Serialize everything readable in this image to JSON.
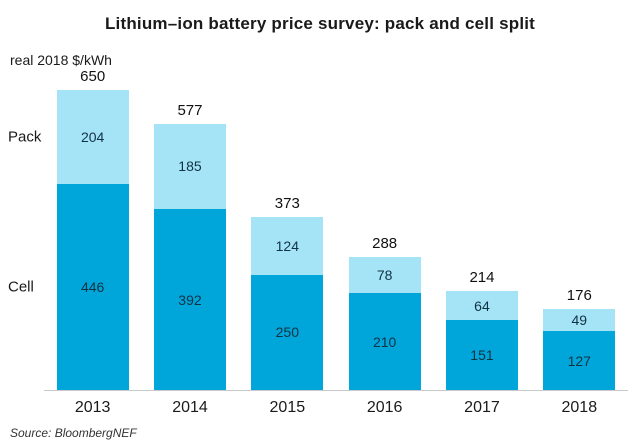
{
  "title": "Lithium–ion battery price survey: pack and cell split",
  "units_label": "real 2018 $/kWh",
  "source": "Source: BloombergNEF",
  "series_labels": {
    "pack": "Pack",
    "cell": "Cell"
  },
  "colors": {
    "cell": "#00a6da",
    "pack": "#a5e4f7",
    "axis": "#c9c9c9",
    "value_text": "#103344"
  },
  "chart_data": {
    "type": "bar",
    "stacked": true,
    "title": "Lithium–ion battery price survey: pack and cell split",
    "ylabel": "real 2018 $/kWh",
    "categories": [
      "2013",
      "2014",
      "2015",
      "2016",
      "2017",
      "2018"
    ],
    "series": [
      {
        "name": "Cell",
        "values": [
          446,
          392,
          250,
          210,
          151,
          127
        ]
      },
      {
        "name": "Pack",
        "values": [
          204,
          185,
          124,
          78,
          64,
          49
        ]
      }
    ],
    "totals": [
      650,
      577,
      373,
      288,
      214,
      176
    ],
    "ylim": [
      0,
      650
    ],
    "grid": false,
    "legend_position": "left-inline"
  }
}
